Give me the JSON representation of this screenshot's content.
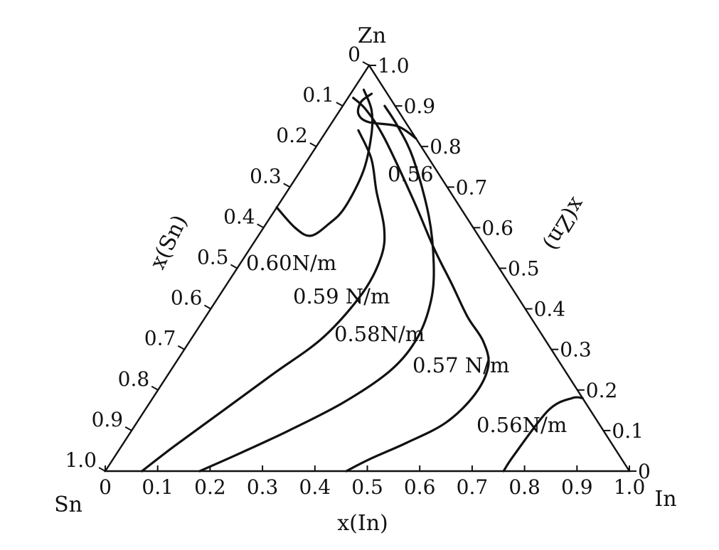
{
  "chart_data": {
    "type": "ternary-contour",
    "title": "",
    "corners": {
      "left": "Sn",
      "right": "In",
      "top": "Zn"
    },
    "axes": {
      "bottom": {
        "label": "x(In)",
        "ticks": [
          "0",
          "0.1",
          "0.2",
          "0.3",
          "0.4",
          "0.5",
          "0.6",
          "0.7",
          "0.8",
          "0.9",
          "1.0"
        ]
      },
      "left": {
        "label": "x(Sn)",
        "ticks": [
          "0",
          "0.1",
          "0.2",
          "0.3",
          "0.4",
          "0.5",
          "0.6",
          "0.7",
          "0.8",
          "0.9",
          "1.0"
        ]
      },
      "right": {
        "label": "x(Zn)",
        "ticks": [
          "0",
          "0.1",
          "0.2",
          "0.3",
          "0.4",
          "0.5",
          "0.6",
          "0.7",
          "0.8",
          "0.9",
          "1.0"
        ]
      }
    },
    "isolines": [
      {
        "name": "0.60N/m",
        "value": 0.6,
        "label": "0.60N/m",
        "points": [
          [
            0.0,
            0.35,
            0.65
          ],
          [
            0.06,
            0.34,
            0.6
          ],
          [
            0.1,
            0.32,
            0.58
          ],
          [
            0.12,
            0.27,
            0.61
          ],
          [
            0.13,
            0.22,
            0.65
          ],
          [
            0.12,
            0.14,
            0.74
          ],
          [
            0.09,
            0.08,
            0.83
          ],
          [
            0.06,
            0.05,
            0.89
          ],
          [
            0.02,
            0.04,
            0.94
          ]
        ]
      },
      {
        "name": "0.59N/m",
        "value": 0.59,
        "label": "0.59 N/m",
        "points": [
          [
            0.06,
            0.1,
            0.84
          ],
          [
            0.12,
            0.11,
            0.77
          ],
          [
            0.17,
            0.14,
            0.69
          ],
          [
            0.23,
            0.17,
            0.6
          ],
          [
            0.26,
            0.21,
            0.53
          ],
          [
            0.27,
            0.29,
            0.44
          ],
          [
            0.25,
            0.42,
            0.33
          ],
          [
            0.2,
            0.56,
            0.24
          ],
          [
            0.15,
            0.7,
            0.15
          ],
          [
            0.1,
            0.84,
            0.06
          ],
          [
            0.07,
            0.93,
            0.0
          ]
        ]
      },
      {
        "name": "0.58N/m",
        "value": 0.58,
        "label": "0.58N/m",
        "points": [
          [
            0.08,
            0.02,
            0.9
          ],
          [
            0.13,
            0.02,
            0.85
          ],
          [
            0.2,
            0.03,
            0.77
          ],
          [
            0.3,
            0.07,
            0.63
          ],
          [
            0.37,
            0.12,
            0.51
          ],
          [
            0.41,
            0.17,
            0.42
          ],
          [
            0.43,
            0.24,
            0.33
          ],
          [
            0.42,
            0.33,
            0.25
          ],
          [
            0.37,
            0.46,
            0.17
          ],
          [
            0.3,
            0.6,
            0.1
          ],
          [
            0.23,
            0.73,
            0.04
          ],
          [
            0.18,
            0.82,
            0.0
          ]
        ]
      },
      {
        "name": "0.57N/m",
        "value": 0.57,
        "label": "0.57 N/m",
        "points": [
          [
            0.01,
            0.07,
            0.92
          ],
          [
            0.05,
            0.06,
            0.89
          ],
          [
            0.12,
            0.06,
            0.82
          ],
          [
            0.25,
            0.08,
            0.67
          ],
          [
            0.35,
            0.1,
            0.55
          ],
          [
            0.43,
            0.11,
            0.46
          ],
          [
            0.5,
            0.12,
            0.38
          ],
          [
            0.56,
            0.12,
            0.32
          ],
          [
            0.6,
            0.14,
            0.26
          ],
          [
            0.61,
            0.2,
            0.19
          ],
          [
            0.59,
            0.29,
            0.12
          ],
          [
            0.54,
            0.39,
            0.07
          ],
          [
            0.49,
            0.48,
            0.03
          ],
          [
            0.46,
            0.54,
            0.0
          ]
        ]
      },
      {
        "name": "0.56N/m",
        "value": 0.56,
        "label": "0.56N/m",
        "points": [
          [
            0.82,
            0.0,
            0.18
          ],
          [
            0.8,
            0.02,
            0.18
          ],
          [
            0.77,
            0.08,
            0.15
          ],
          [
            0.76,
            0.2,
            0.04
          ],
          [
            0.76,
            0.24,
            0.0
          ]
        ]
      },
      {
        "name": "0.56",
        "value": 0.56,
        "label": "0.56",
        "points": [
          [
            0.18,
            0.0,
            0.82
          ],
          [
            0.13,
            0.02,
            0.85
          ],
          [
            0.07,
            0.07,
            0.86
          ],
          [
            0.04,
            0.08,
            0.88
          ],
          [
            0.03,
            0.06,
            0.91
          ],
          [
            0.04,
            0.03,
            0.93
          ]
        ]
      }
    ]
  }
}
